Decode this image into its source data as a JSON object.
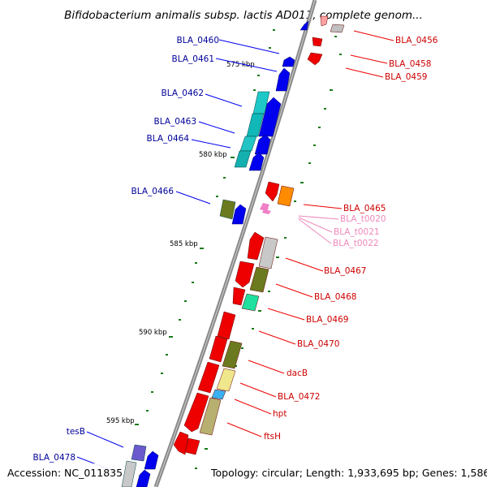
{
  "title": "Bifidobacterium animalis subsp. lactis AD011, complete genom...",
  "footer": {
    "accession": "Accession: NC_011835",
    "summary": "Topology: circular; Length: 1,933,695 bp; Genes: 1,586"
  },
  "colors": {
    "backbone": "#8a8a8a",
    "forward_gene": "#0000ee",
    "reverse_gene": "#ee0000",
    "forward_label": "#000099",
    "reverse_label": "#cc0000",
    "rna_label": "#ee88bb",
    "tick": "#1a7a1a"
  },
  "scale_labels": [
    "575 kbp",
    "580 kbp",
    "585 kbp",
    "590 kbp",
    "595 kbp"
  ],
  "left_labels": [
    "BLA_0460",
    "BLA_0461",
    "BLA_0462",
    "BLA_0463",
    "BLA_0464",
    "BLA_0466",
    "tesB",
    "BLA_0478"
  ],
  "right_labels": [
    "BLA_0456",
    "BLA_0458",
    "BLA_0459",
    "BLA_0465",
    "BLA_t0020",
    "BLA_t0021",
    "BLA_t0022",
    "BLA_0467",
    "BLA_0468",
    "BLA_0469",
    "BLA_0470",
    "dacB",
    "BLA_0472",
    "hpt",
    "ftsH"
  ]
}
